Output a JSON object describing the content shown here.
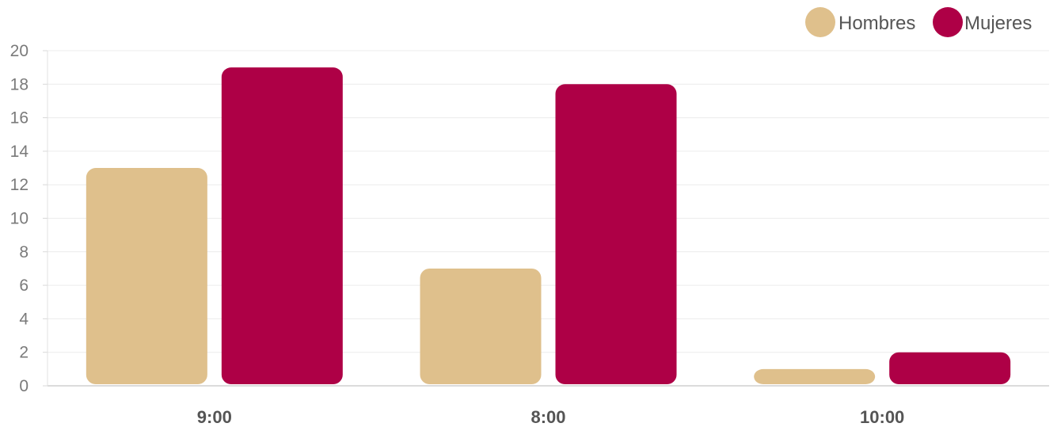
{
  "chart_data": {
    "type": "bar",
    "categories": [
      "9:00",
      "8:00",
      "10:00"
    ],
    "series": [
      {
        "name": "Hombres",
        "values": [
          13,
          7,
          1
        ],
        "color": "#dfc08c"
      },
      {
        "name": "Mujeres",
        "values": [
          19,
          18,
          2
        ],
        "color": "#ae0046"
      }
    ],
    "ylim": [
      0,
      20
    ],
    "yticks": [
      "0",
      "2",
      "4",
      "6",
      "8",
      "10",
      "12",
      "14",
      "16",
      "18",
      "20"
    ],
    "grid": true,
    "legend_position": "top-right",
    "title": "",
    "xlabel": "",
    "ylabel": ""
  }
}
